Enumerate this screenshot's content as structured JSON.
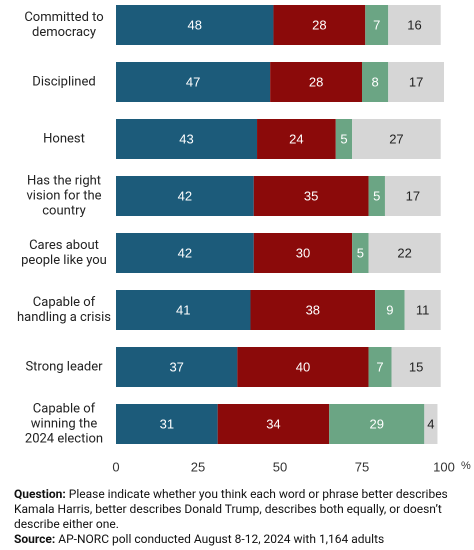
{
  "chart_data": {
    "type": "stacked_bar_horizontal",
    "categories": [
      "Committed to\ndemocracy",
      "Disciplined",
      "Honest",
      "Has the right\nvision for the\ncountry",
      "Cares about\npeople like you",
      "Capable of\nhandling a crisis",
      "Strong leader",
      "Capable of\nwinning the\n2024 election"
    ],
    "series": [
      {
        "color": "#1c5b7a",
        "label_color": "#ffffff",
        "values": [
          48,
          47,
          43,
          42,
          42,
          41,
          37,
          31
        ]
      },
      {
        "color": "#8b0a0a",
        "label_color": "#ffffff",
        "values": [
          28,
          28,
          24,
          35,
          30,
          38,
          40,
          34
        ]
      },
      {
        "color": "#6ba584",
        "label_color": "#ffffff",
        "values": [
          7,
          8,
          5,
          5,
          5,
          9,
          7,
          29
        ]
      },
      {
        "color": "#d6d6d6",
        "label_color": "#222222",
        "values": [
          16,
          17,
          27,
          17,
          22,
          11,
          15,
          4
        ]
      }
    ],
    "xlim": [
      0,
      100
    ],
    "xticks": [
      0,
      25,
      50,
      75,
      100
    ],
    "xlabel": "%",
    "grid": false
  },
  "notes": [
    {
      "label": "Question:",
      "text": "Please indicate whether you think each word or phrase better describes Kamala Harris, better describes Donald Trump, describes both equally, or doesn’t describe either one."
    },
    {
      "label": "Source:",
      "text": "AP-NORC poll conducted August 8-12, 2024 with 1,164 adults"
    }
  ]
}
